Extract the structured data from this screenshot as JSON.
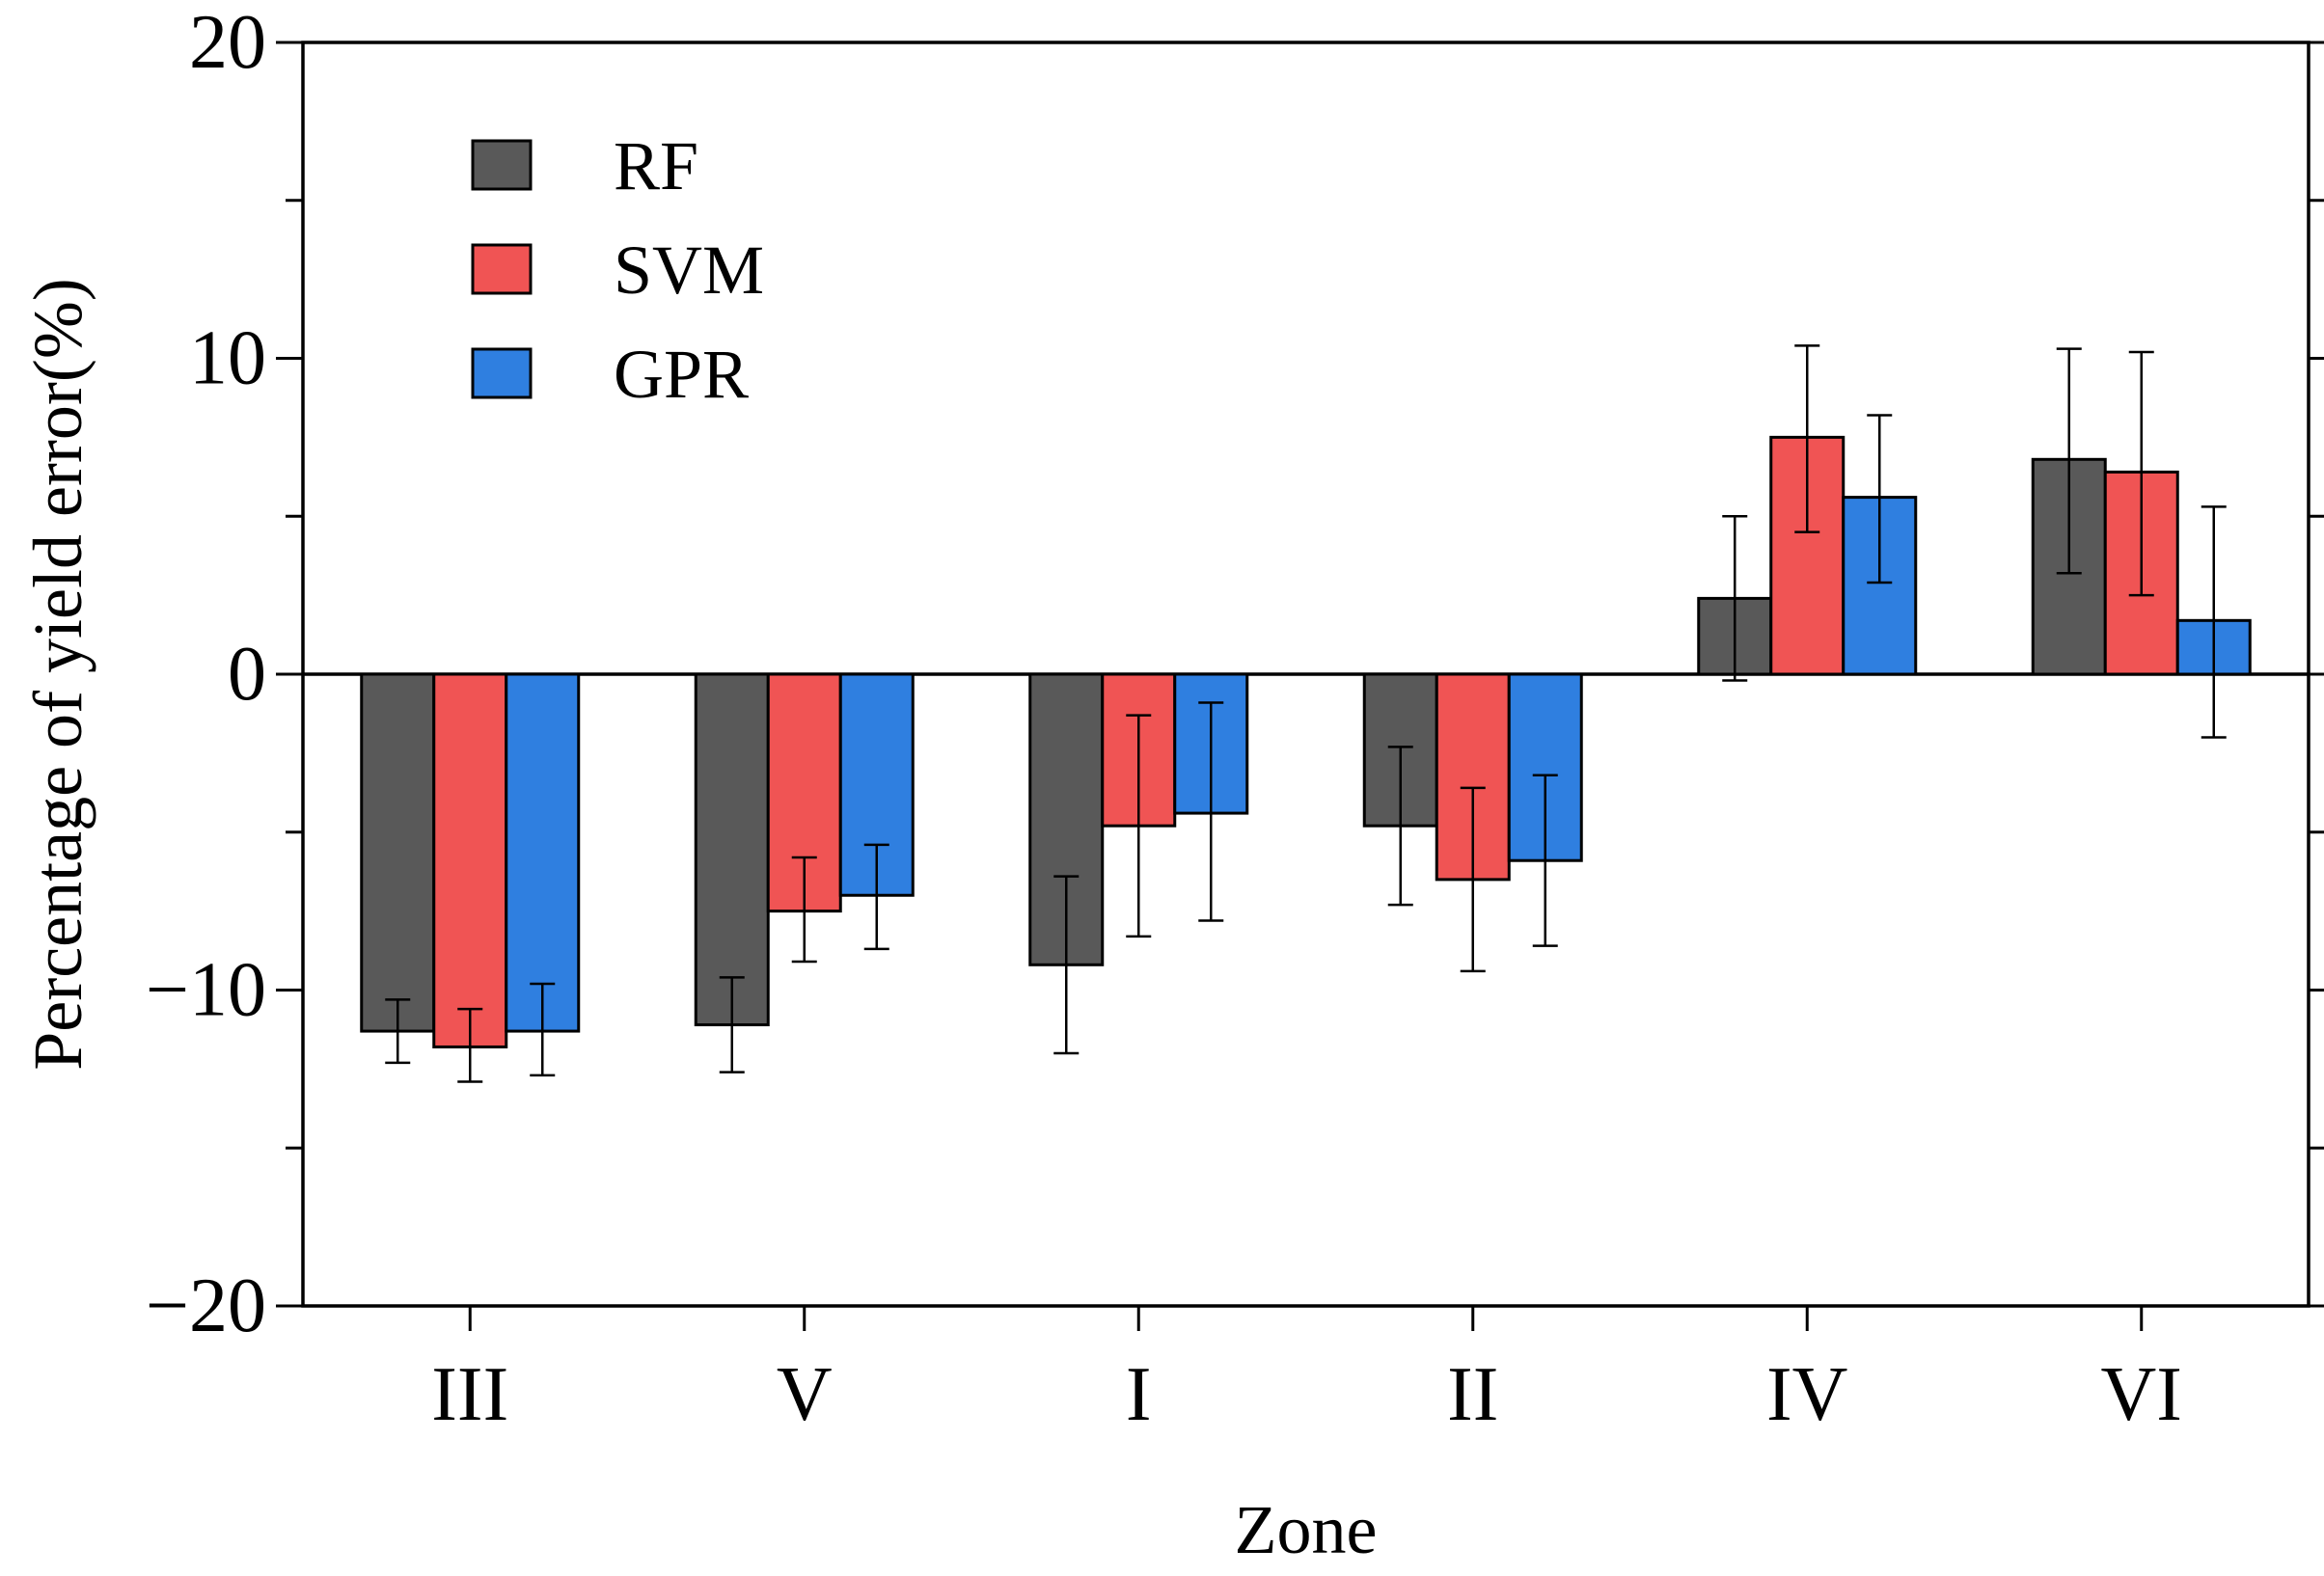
{
  "chart_data": {
    "type": "bar",
    "title": "",
    "xlabel": "Zone",
    "ylabel": "Percentage of yield error(%)",
    "ylim": [
      -20,
      20
    ],
    "y_ticks": [
      -20,
      -10,
      0,
      10,
      20
    ],
    "y_tick_labels": [
      "−20",
      "−10",
      "0",
      "10",
      "20"
    ],
    "y_minor_step": 5,
    "categories": [
      "III",
      "V",
      "I",
      "II",
      "IV",
      "VI"
    ],
    "legend_position": "top-left",
    "series": [
      {
        "name": "RF",
        "color": "#595959",
        "values": [
          -11.3,
          -11.1,
          -9.2,
          -4.8,
          2.4,
          6.8
        ],
        "error_low": [
          -12.3,
          -12.6,
          -12.0,
          -7.3,
          -0.2,
          3.2
        ],
        "error_high": [
          -10.3,
          -9.6,
          -6.4,
          -2.3,
          5.0,
          10.3
        ]
      },
      {
        "name": "SVM",
        "color": "#f05454",
        "values": [
          -11.8,
          -7.5,
          -4.8,
          -6.5,
          7.5,
          6.4
        ],
        "error_low": [
          -12.9,
          -9.1,
          -8.3,
          -9.4,
          4.5,
          2.5
        ],
        "error_high": [
          -10.6,
          -5.8,
          -1.3,
          -3.6,
          10.4,
          10.2
        ]
      },
      {
        "name": "GPR",
        "color": "#2f7fe0",
        "values": [
          -11.3,
          -7.0,
          -4.4,
          -5.9,
          5.6,
          1.7
        ],
        "error_low": [
          -12.7,
          -8.7,
          -7.8,
          -8.6,
          2.9,
          -2.0
        ],
        "error_high": [
          -9.8,
          -5.4,
          -0.9,
          -3.2,
          8.2,
          5.3
        ]
      }
    ]
  }
}
